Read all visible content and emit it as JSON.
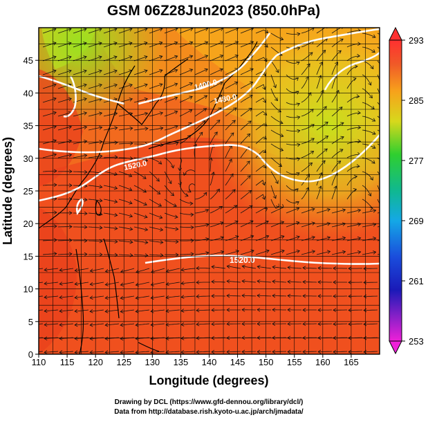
{
  "title": "GSM 06Z28Jun2023 (850.0hPa)",
  "x_axis": {
    "label": "Longitude (degrees)",
    "ticks": [
      "110",
      "115",
      "120",
      "125",
      "130",
      "135",
      "140",
      "145",
      "150",
      "155",
      "160",
      "165"
    ]
  },
  "y_axis": {
    "label": "Latitude  (degrees)",
    "ticks": [
      "0",
      "5",
      "10",
      "15",
      "20",
      "25",
      "30",
      "35",
      "40",
      "45"
    ]
  },
  "colorbar": {
    "labels": [
      "293",
      "285",
      "277",
      "269",
      "261",
      "253"
    ]
  },
  "contours": [
    {
      "label": "1400.0"
    },
    {
      "label": "1480.0"
    },
    {
      "label": "1520.0"
    },
    {
      "label": "1520.0"
    }
  ],
  "credits": {
    "line1": "Drawing by DCL (https://www.gfd-dennou.org/library/dcl/)",
    "line2": "Data from http://database.rish.kyoto-u.ac.jp/arch/jmadata/"
  },
  "colors": {
    "warm": "#ec3c1c",
    "mid": "#f7a21b",
    "cool": "#c8e01c",
    "contour": "#ffffff"
  }
}
